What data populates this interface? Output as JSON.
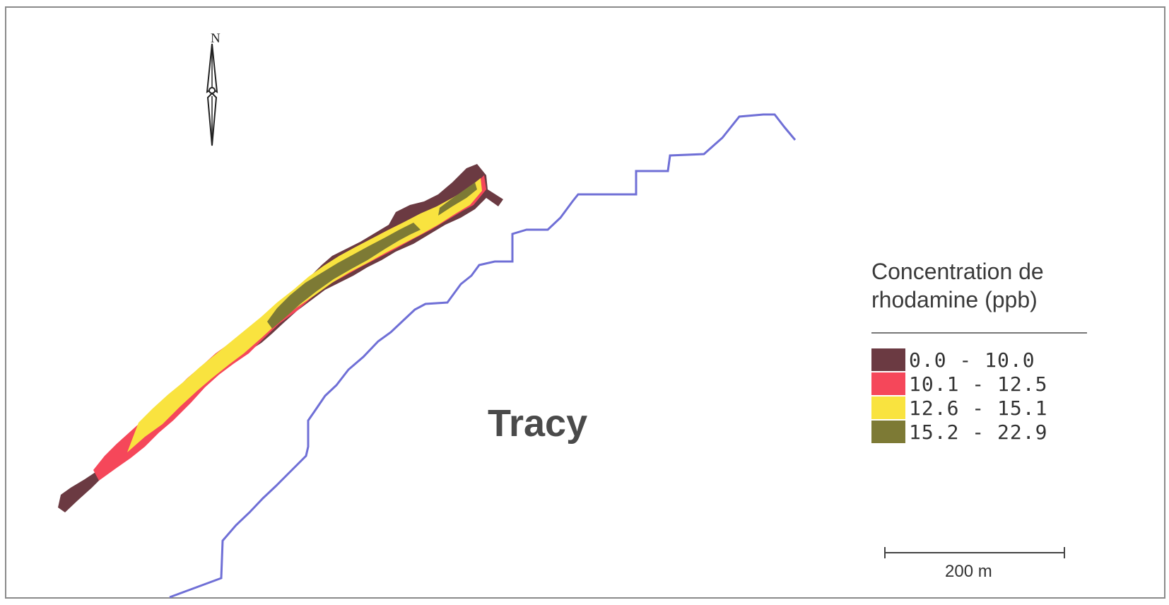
{
  "north_arrow": {
    "label": "N",
    "icon": "north-arrow-icon"
  },
  "place_label": "Tracy",
  "legend": {
    "title": "Concentration de\nrhodamine (ppb)",
    "items": [
      {
        "label": "0.0 - 10.0",
        "color": "#6b3a42"
      },
      {
        "label": "10.1 - 12.5",
        "color": "#f5475a"
      },
      {
        "label": "12.6 - 15.1",
        "color": "#f9e33f"
      },
      {
        "label": "15.2 - 22.9",
        "color": "#7d7a35"
      }
    ]
  },
  "scale_bar": {
    "label": "200 m"
  },
  "colors": {
    "shoreline": "#6f6fd6",
    "frame": "#888888"
  }
}
